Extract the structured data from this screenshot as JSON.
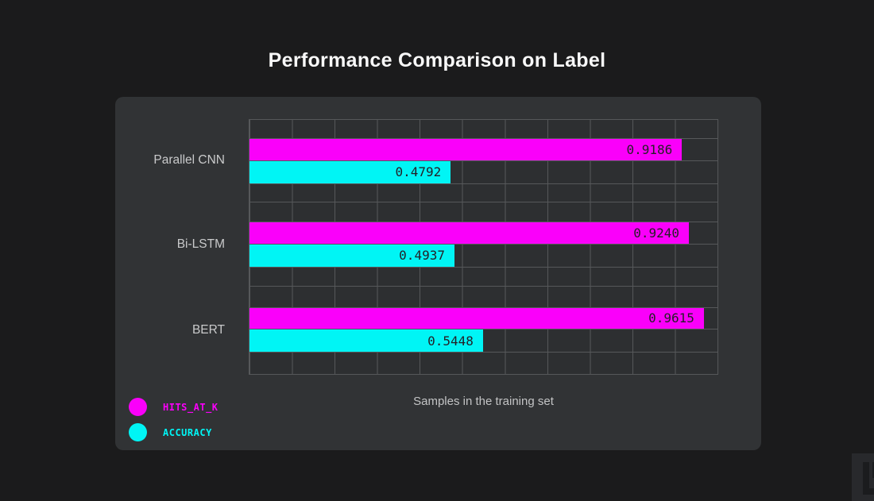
{
  "page": {
    "title": "Performance Comparison on Label"
  },
  "chart_data": {
    "type": "bar",
    "orientation": "horizontal",
    "title": "Performance Comparison on Label",
    "xlabel": "Samples in the training set",
    "ylabel": "",
    "categories": [
      "Parallel CNN",
      "Bi-LSTM",
      "BERT"
    ],
    "series": [
      {
        "name": "HITS_AT_K",
        "color": "#fa00fa",
        "values": [
          0.9186,
          0.924,
          0.9615
        ],
        "value_labels": [
          "0.9186",
          "0.9240",
          "0.9615"
        ],
        "bar_width_pct": [
          92.4,
          93.9,
          97.1
        ]
      },
      {
        "name": "ACCURACY",
        "color": "#00f5f5",
        "values": [
          0.4792,
          0.4937,
          0.5448
        ],
        "value_labels": [
          "0.4792",
          "0.4937",
          "0.5448"
        ],
        "bar_width_pct": [
          43.0,
          43.8,
          49.9
        ]
      }
    ],
    "xlim": [
      0,
      1.0
    ],
    "grid": true,
    "grid_columns": 11,
    "legend_position": "bottom-left"
  },
  "colors": {
    "page_background": "#1b1b1c",
    "panel_background": "#313335",
    "plot_background": "#2d2f31",
    "grid_line": "#56585a",
    "bar_value_text": "#251f26",
    "axis_text": "#c9cacb",
    "title_text": "#f8f8f8"
  },
  "logo": {
    "icon": "lu-monogram-icon"
  }
}
